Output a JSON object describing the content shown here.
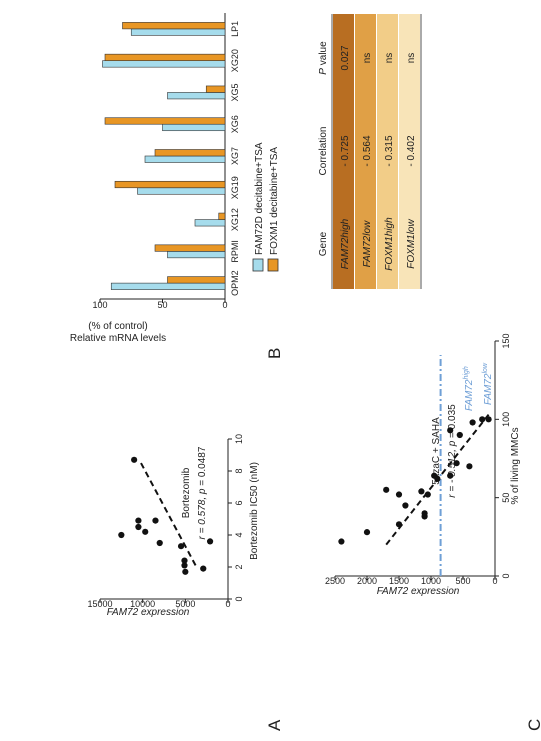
{
  "colors": {
    "cyan": "#a6dcec",
    "orange": "#e89624",
    "table_header": "#ffffff",
    "row1": "#b86e22",
    "row2": "#e0a046",
    "row3": "#f2cd88",
    "row4": "#f8e4b8",
    "dash_blue": "#6f9fd6"
  },
  "panels": {
    "a": "A",
    "b": "B",
    "c": "C"
  },
  "chart_data": [
    {
      "id": "A",
      "type": "scatter",
      "title": "Bortezomib",
      "annotation": {
        "r_prefix": "r = 0.578, ",
        "p_symbol": "p",
        "p_suffix": " = 0.0487"
      },
      "xlabel": "Bortezomib IC50 (nM)",
      "ylabel": "FAM72 expression",
      "xlim": [
        0,
        10
      ],
      "ylim": [
        0,
        15000
      ],
      "xticks": [
        0,
        2,
        4,
        6,
        8,
        10
      ],
      "yticks": [
        0,
        5000,
        10000,
        15000
      ],
      "points": [
        [
          1.7,
          5000
        ],
        [
          1.9,
          2900
        ],
        [
          2.1,
          5100
        ],
        [
          2.4,
          5100
        ],
        [
          3.3,
          5500
        ],
        [
          3.6,
          2100
        ],
        [
          3.5,
          8000
        ],
        [
          4.2,
          9700
        ],
        [
          4.5,
          10500
        ],
        [
          4.9,
          10500
        ],
        [
          4.0,
          12500
        ],
        [
          4.9,
          8500
        ],
        [
          8.7,
          11000
        ]
      ],
      "trendline": [
        [
          2.1,
          3800
        ],
        [
          8.6,
          10300
        ]
      ]
    },
    {
      "id": "B",
      "type": "bar",
      "ylabel_line1": "Relative mRNA levels",
      "ylabel_line2": "(% of control)",
      "ylim": [
        0,
        100
      ],
      "yticks": [
        0,
        50,
        100
      ],
      "categories": [
        "OPM2",
        "RPMI",
        "XG12",
        "XG19",
        "XG7",
        "XG6",
        "XG5",
        "XG20",
        "LP1"
      ],
      "series": [
        {
          "name": "FAM72D decitabine+TSA",
          "values": [
            91,
            46,
            24,
            70,
            64,
            50,
            46,
            98,
            75
          ]
        },
        {
          "name": "FOXM1 decitabine+TSA",
          "values": [
            46,
            56,
            5,
            88,
            56,
            96,
            15,
            96,
            82
          ]
        }
      ]
    },
    {
      "id": "C",
      "type": "scatter",
      "title": "5azaC + SAHA",
      "annotation": {
        "r_prefix": "r = - 0.512, ",
        "p_symbol": "p",
        "p_suffix": " = 0.035"
      },
      "xlabel": "% of living MMCs",
      "ylabel": "FAM72 expression",
      "xlim": [
        0,
        150
      ],
      "ylim": [
        0,
        2500
      ],
      "xticks": [
        0,
        50,
        100,
        150
      ],
      "yticks": [
        0,
        500,
        1000,
        1500,
        2000,
        2500
      ],
      "points": [
        [
          22,
          2400
        ],
        [
          28,
          2000
        ],
        [
          33,
          1500
        ],
        [
          40,
          1100
        ],
        [
          45,
          1400
        ],
        [
          52,
          1500
        ],
        [
          54,
          1150
        ],
        [
          52,
          1050
        ],
        [
          62,
          900
        ],
        [
          64,
          950
        ],
        [
          64,
          700
        ],
        [
          70,
          400
        ],
        [
          72,
          600
        ],
        [
          90,
          550
        ],
        [
          93,
          700
        ],
        [
          98,
          350
        ],
        [
          100,
          100
        ],
        [
          100,
          200
        ],
        [
          55,
          1700
        ],
        [
          38,
          1100
        ]
      ],
      "trendline": [
        [
          20,
          1700
        ],
        [
          103,
          100
        ]
      ],
      "threshold": 850,
      "threshold_labels": {
        "high": "FAM72",
        "high_sup": "high",
        "low": "FAM72",
        "low_sup": "low"
      }
    }
  ],
  "table": {
    "headers": {
      "gene": "Gene",
      "correlation": "Correlation",
      "p_italic": "P",
      "p_rest": " value"
    },
    "rows": [
      {
        "gene": "FAM72high",
        "correlation": "- 0.725",
        "p": "0.027"
      },
      {
        "gene": "FAM72low",
        "correlation": "- 0.564",
        "p": "ns"
      },
      {
        "gene": "FOXM1high",
        "correlation": "- 0.315",
        "p": "ns"
      },
      {
        "gene": "FOXM1low",
        "correlation": "- 0.402",
        "p": "ns"
      }
    ]
  }
}
